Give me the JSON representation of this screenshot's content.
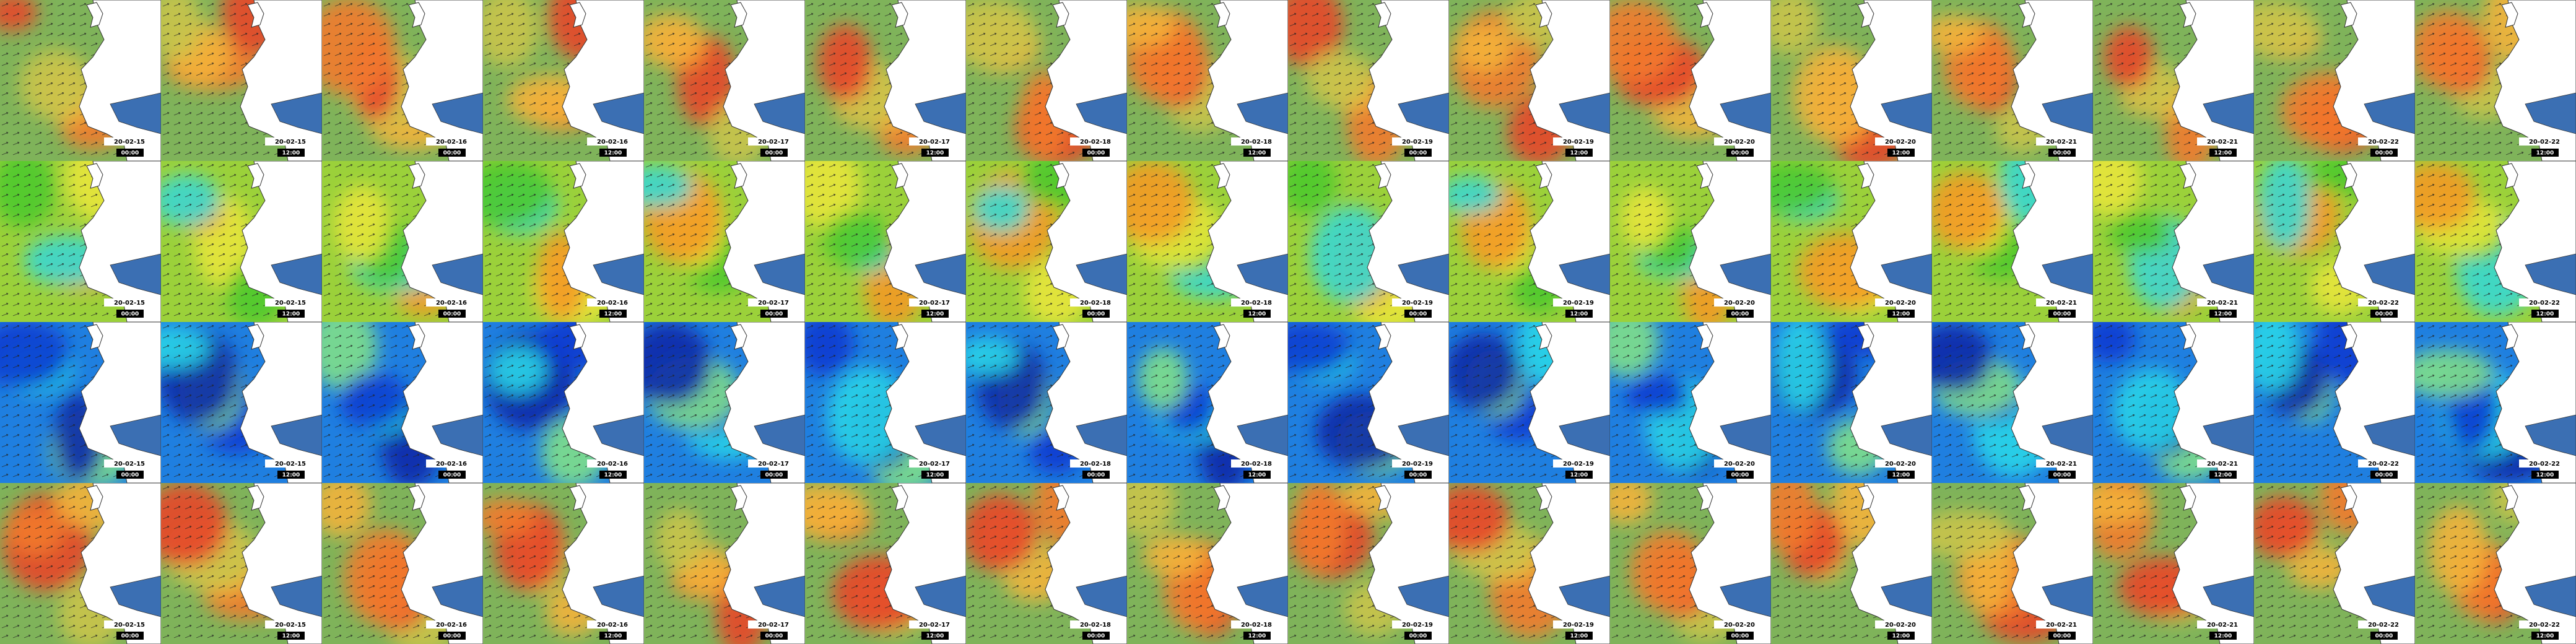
{
  "tiles": {
    "rows": [
      [
        {
          "date": "20-02-15",
          "time": "00:00"
        },
        {
          "date": "20-02-15",
          "time": "12:00"
        },
        {
          "date": "20-02-16",
          "time": "00:00"
        },
        {
          "date": "20-02-16",
          "time": "12:00"
        },
        {
          "date": "20-02-17",
          "time": "00:00"
        },
        {
          "date": "20-02-17",
          "time": "12:00"
        },
        {
          "date": "20-02-18",
          "time": "00:00"
        },
        {
          "date": "20-02-18",
          "time": "12:00"
        },
        {
          "date": "20-02-19",
          "time": "00:00"
        },
        {
          "date": "20-02-19",
          "time": "12:00"
        },
        {
          "date": "20-02-20",
          "time": "00:00"
        },
        {
          "date": "20-02-20",
          "time": "12:00"
        },
        {
          "date": "20-02-21",
          "time": "00:00"
        },
        {
          "date": "20-02-21",
          "time": "12:00"
        },
        {
          "date": "20-02-22",
          "time": "00:00"
        },
        {
          "date": "20-02-22",
          "time": "12:00"
        }
      ],
      [
        {
          "date": "20-02-15",
          "time": "00:00"
        },
        {
          "date": "20-02-15",
          "time": "12:00"
        },
        {
          "date": "20-02-16",
          "time": "00:00"
        },
        {
          "date": "20-02-16",
          "time": "12:00"
        },
        {
          "date": "20-02-17",
          "time": "00:00"
        },
        {
          "date": "20-02-17",
          "time": "12:00"
        },
        {
          "date": "20-02-18",
          "time": "00:00"
        },
        {
          "date": "20-02-18",
          "time": "12:00"
        },
        {
          "date": "20-02-19",
          "time": "00:00"
        },
        {
          "date": "20-02-19",
          "time": "12:00"
        },
        {
          "date": "20-02-20",
          "time": "00:00"
        },
        {
          "date": "20-02-20",
          "time": "12:00"
        },
        {
          "date": "20-02-21",
          "time": "00:00"
        },
        {
          "date": "20-02-21",
          "time": "12:00"
        },
        {
          "date": "20-02-22",
          "time": "00:00"
        },
        {
          "date": "20-02-22",
          "time": "12:00"
        }
      ],
      [
        {
          "date": "20-02-15",
          "time": "00:00"
        },
        {
          "date": "20-02-15",
          "time": "12:00"
        },
        {
          "date": "20-02-16",
          "time": "00:00"
        },
        {
          "date": "20-02-16",
          "time": "12:00"
        },
        {
          "date": "20-02-17",
          "time": "00:00"
        },
        {
          "date": "20-02-17",
          "time": "12:00"
        },
        {
          "date": "20-02-18",
          "time": "00:00"
        },
        {
          "date": "20-02-18",
          "time": "12:00"
        },
        {
          "date": "20-02-19",
          "time": "00:00"
        },
        {
          "date": "20-02-19",
          "time": "12:00"
        },
        {
          "date": "20-02-20",
          "time": "00:00"
        },
        {
          "date": "20-02-20",
          "time": "12:00"
        },
        {
          "date": "20-02-21",
          "time": "00:00"
        },
        {
          "date": "20-02-21",
          "time": "12:00"
        },
        {
          "date": "20-02-22",
          "time": "00:00"
        },
        {
          "date": "20-02-22",
          "time": "12:00"
        }
      ],
      [
        {
          "date": "20-02-15",
          "time": "00:00"
        },
        {
          "date": "20-02-15",
          "time": "12:00"
        },
        {
          "date": "20-02-16",
          "time": "00:00"
        },
        {
          "date": "20-02-16",
          "time": "12:00"
        },
        {
          "date": "20-02-17",
          "time": "00:00"
        },
        {
          "date": "20-02-17",
          "time": "12:00"
        },
        {
          "date": "20-02-18",
          "time": "00:00"
        },
        {
          "date": "20-02-18",
          "time": "12:00"
        },
        {
          "date": "20-02-19",
          "time": "00:00"
        },
        {
          "date": "20-02-19",
          "time": "12:00"
        },
        {
          "date": "20-02-20",
          "time": "00:00"
        },
        {
          "date": "20-02-20",
          "time": "12:00"
        },
        {
          "date": "20-02-21",
          "time": "00:00"
        },
        {
          "date": "20-02-21",
          "time": "12:00"
        },
        {
          "date": "20-02-22",
          "time": "00:00"
        },
        {
          "date": "20-02-22",
          "time": "12:00"
        }
      ]
    ]
  }
}
